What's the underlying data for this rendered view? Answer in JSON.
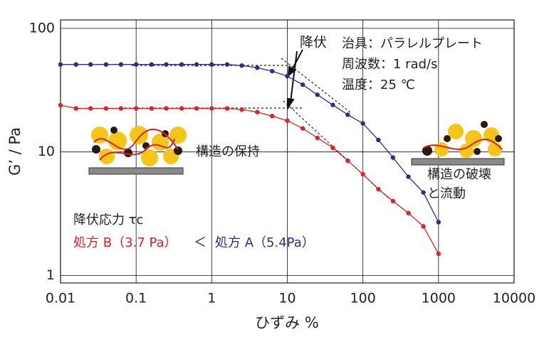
{
  "chart_data": {
    "type": "line",
    "x_label": "ひずみ %",
    "y_label": "G’ / Pa",
    "log_x": true,
    "log_y": true,
    "grid": true,
    "x": [
      0.01,
      0.016,
      0.025,
      0.04,
      0.063,
      0.1,
      0.16,
      0.25,
      0.4,
      0.63,
      1,
      1.6,
      2.5,
      4,
      6.3,
      10,
      16,
      25,
      40,
      63,
      100,
      160,
      250,
      400,
      630,
      1000
    ],
    "series": [
      {
        "name": "処方 A",
        "color": "#2b2f8c",
        "values": [
          51,
          51,
          51,
          51,
          51,
          51,
          51,
          51,
          51,
          51,
          51,
          51,
          50,
          48,
          45,
          41,
          35,
          29,
          24,
          20,
          17,
          12.5,
          9,
          6.3,
          4.7,
          2.7
        ]
      },
      {
        "name": "処方 B",
        "color": "#e0202a",
        "values": [
          23.9,
          22.5,
          22.5,
          22.5,
          22.5,
          22.5,
          22.5,
          22.5,
          22.5,
          22.5,
          22.5,
          22.5,
          22,
          21,
          19.5,
          17.9,
          15.5,
          13,
          10.8,
          8.5,
          6.6,
          5,
          4,
          3.2,
          2.5,
          1.5
        ]
      }
    ],
    "xlim": [
      0.01,
      10000
    ],
    "xticks": [
      0.01,
      0.1,
      1,
      10,
      100,
      1000,
      10000
    ],
    "ylim": [
      0.87,
      117
    ],
    "yticks": [
      1,
      10,
      100
    ],
    "annotations": [
      "降伏",
      "治具：パラレルプレート",
      "周波数：1 rad/s",
      "温度：25 ℃",
      "構造の保持",
      "構造の破壊",
      "と流動",
      "降伏応力 τc",
      "処方 B（3.7 Pa）",
      "＜",
      "処方 A（5.4Pa）"
    ]
  }
}
